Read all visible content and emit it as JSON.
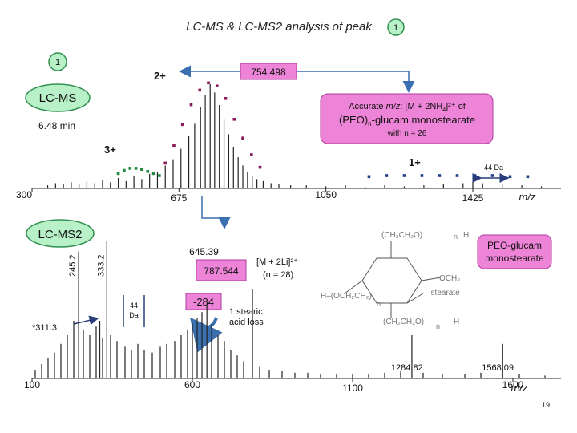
{
  "slide": {
    "title": "LC-MS & LC-MS2 analysis of peak",
    "peak_badge": "1",
    "page_number": "19"
  },
  "colors": {
    "badge_fill": "#b8f0c8",
    "badge_border": "#2f8f4e",
    "box_fill": "#ee84d8",
    "box_border": "#b23aa0",
    "arrow": "#3a6fb0",
    "trace": "#222222",
    "dot_purple": "#8b1a5a",
    "dot_green": "#1f8a3a",
    "dot_blue": "#1f3f8a"
  },
  "chart_data": [
    {
      "type": "line",
      "name_badge": "1",
      "box_label": "LC-MS",
      "retention_time": "6.48 min",
      "xlabel": "m/z",
      "xlim": [
        300,
        1650
      ],
      "x_ticks": [
        "300",
        "675",
        "1050",
        "1425"
      ],
      "callout_value": "754.498",
      "accurate_box": {
        "line1_prefix": "Accurate ",
        "line1_mz": "m/z",
        "line1_suffix": ": [M + 2NH",
        "line1_sub": "4",
        "line1_end": "]²⁺ of",
        "line2_prefix": "(PEO)",
        "line2_sub": "n",
        "line2_end": "-glucam monostearate",
        "line3": "with n = 26"
      },
      "charge_labels": {
        "two": "2+",
        "three": "3+",
        "one": "1+"
      },
      "spacing_label": "44 Da",
      "spectrum": [
        [
          340,
          3
        ],
        [
          360,
          5
        ],
        [
          380,
          4
        ],
        [
          400,
          6
        ],
        [
          420,
          4
        ],
        [
          440,
          7
        ],
        [
          460,
          5
        ],
        [
          480,
          8
        ],
        [
          500,
          6
        ],
        [
          520,
          10
        ],
        [
          540,
          7
        ],
        [
          560,
          12
        ],
        [
          580,
          9
        ],
        [
          600,
          14
        ],
        [
          620,
          16
        ],
        [
          640,
          22
        ],
        [
          660,
          28
        ],
        [
          680,
          38
        ],
        [
          700,
          50
        ],
        [
          715,
          62
        ],
        [
          730,
          78
        ],
        [
          742,
          90
        ],
        [
          754.498,
          100
        ],
        [
          766,
          92
        ],
        [
          778,
          80
        ],
        [
          790,
          66
        ],
        [
          802,
          52
        ],
        [
          814,
          40
        ],
        [
          826,
          30
        ],
        [
          838,
          22
        ],
        [
          850,
          16
        ],
        [
          862,
          12
        ],
        [
          874,
          9
        ],
        [
          890,
          7
        ],
        [
          910,
          5
        ],
        [
          930,
          4
        ],
        [
          960,
          3
        ],
        [
          1000,
          3
        ],
        [
          1050,
          2
        ],
        [
          1100,
          3
        ],
        [
          1150,
          2
        ],
        [
          1200,
          3
        ],
        [
          1250,
          2
        ],
        [
          1300,
          3
        ],
        [
          1350,
          4
        ],
        [
          1400,
          5
        ],
        [
          1425,
          6
        ],
        [
          1450,
          5
        ],
        [
          1500,
          4
        ],
        [
          1550,
          3
        ],
        [
          1600,
          2
        ]
      ],
      "envelope_2plus": [
        [
          640,
          18
        ],
        [
          662,
          35
        ],
        [
          684,
          55
        ],
        [
          706,
          74
        ],
        [
          728,
          88
        ],
        [
          750,
          95
        ],
        [
          772,
          92
        ],
        [
          794,
          80
        ],
        [
          816,
          60
        ],
        [
          838,
          42
        ],
        [
          860,
          26
        ],
        [
          882,
          14
        ]
      ],
      "envelope_3plus": [
        [
          520,
          8
        ],
        [
          535,
          11
        ],
        [
          550,
          13
        ],
        [
          565,
          13
        ],
        [
          580,
          12
        ],
        [
          595,
          10
        ],
        [
          610,
          8
        ],
        [
          625,
          6
        ]
      ],
      "envelope_1plus": [
        [
          1160,
          5
        ],
        [
          1205,
          6
        ],
        [
          1250,
          6
        ],
        [
          1295,
          6
        ],
        [
          1340,
          6
        ],
        [
          1385,
          6
        ],
        [
          1430,
          6
        ],
        [
          1475,
          6
        ],
        [
          1520,
          5
        ],
        [
          1565,
          5
        ]
      ]
    },
    {
      "type": "line",
      "box_label": "LC-MS2",
      "xlabel": "m/z",
      "xlim": [
        100,
        1750
      ],
      "x_ticks": [
        "100",
        "600",
        "1100",
        "1600"
      ],
      "peak_labels": [
        {
          "x": 245.2,
          "text": "245.2"
        },
        {
          "x": 333.2,
          "text": "333.2"
        },
        {
          "x": 645.39,
          "text": "645.39"
        },
        {
          "x": 1284.82,
          "text": "1284.82"
        },
        {
          "x": 1568.09,
          "text": "1568.09"
        },
        {
          "x": 311.3,
          "text": "*311.3"
        }
      ],
      "precursor_label": "787.544",
      "precursor_annotation": {
        "line1": "[M + 2Li]²⁺",
        "line2": "(n = 28)"
      },
      "loss_label": "-284",
      "loss_text": {
        "line1": "1 stearic",
        "line2": "acid loss"
      },
      "spacing_label": {
        "line1": "44",
        "line2": "Da"
      },
      "structure_box": "PEO-glucam monostearate",
      "structure_labels": {
        "top": "(CH₂CH₂O)",
        "right_och3": "OCH₃",
        "left": "H–(OCH₂CH₂)",
        "right_stearate": "–stearate",
        "bottom": "(CH₂CH₂O)",
        "sub_n": "n",
        "h": "H"
      },
      "spectrum": [
        [
          110,
          6
        ],
        [
          130,
          10
        ],
        [
          150,
          14
        ],
        [
          170,
          18
        ],
        [
          190,
          24
        ],
        [
          210,
          30
        ],
        [
          230,
          40
        ],
        [
          245.2,
          88
        ],
        [
          260,
          34
        ],
        [
          280,
          30
        ],
        [
          300,
          36
        ],
        [
          311.3,
          40
        ],
        [
          320,
          28
        ],
        [
          333.2,
          95
        ],
        [
          345,
          30
        ],
        [
          365,
          26
        ],
        [
          390,
          22
        ],
        [
          410,
          20
        ],
        [
          430,
          24
        ],
        [
          450,
          20
        ],
        [
          475,
          18
        ],
        [
          500,
          22
        ],
        [
          520,
          24
        ],
        [
          545,
          26
        ],
        [
          565,
          30
        ],
        [
          585,
          34
        ],
        [
          600,
          38
        ],
        [
          615,
          42
        ],
        [
          630,
          46
        ],
        [
          645.39,
          52
        ],
        [
          660,
          38
        ],
        [
          680,
          30
        ],
        [
          700,
          26
        ],
        [
          720,
          20
        ],
        [
          740,
          16
        ],
        [
          760,
          12
        ],
        [
          787.544,
          62
        ],
        [
          810,
          8
        ],
        [
          840,
          6
        ],
        [
          880,
          5
        ],
        [
          920,
          4
        ],
        [
          960,
          4
        ],
        [
          1000,
          3
        ],
        [
          1050,
          3
        ],
        [
          1100,
          3
        ],
        [
          1150,
          3
        ],
        [
          1200,
          4
        ],
        [
          1250,
          5
        ],
        [
          1284.82,
          30
        ],
        [
          1320,
          4
        ],
        [
          1380,
          3
        ],
        [
          1450,
          3
        ],
        [
          1500,
          4
        ],
        [
          1568.09,
          24
        ],
        [
          1620,
          3
        ],
        [
          1700,
          2
        ]
      ]
    }
  ]
}
